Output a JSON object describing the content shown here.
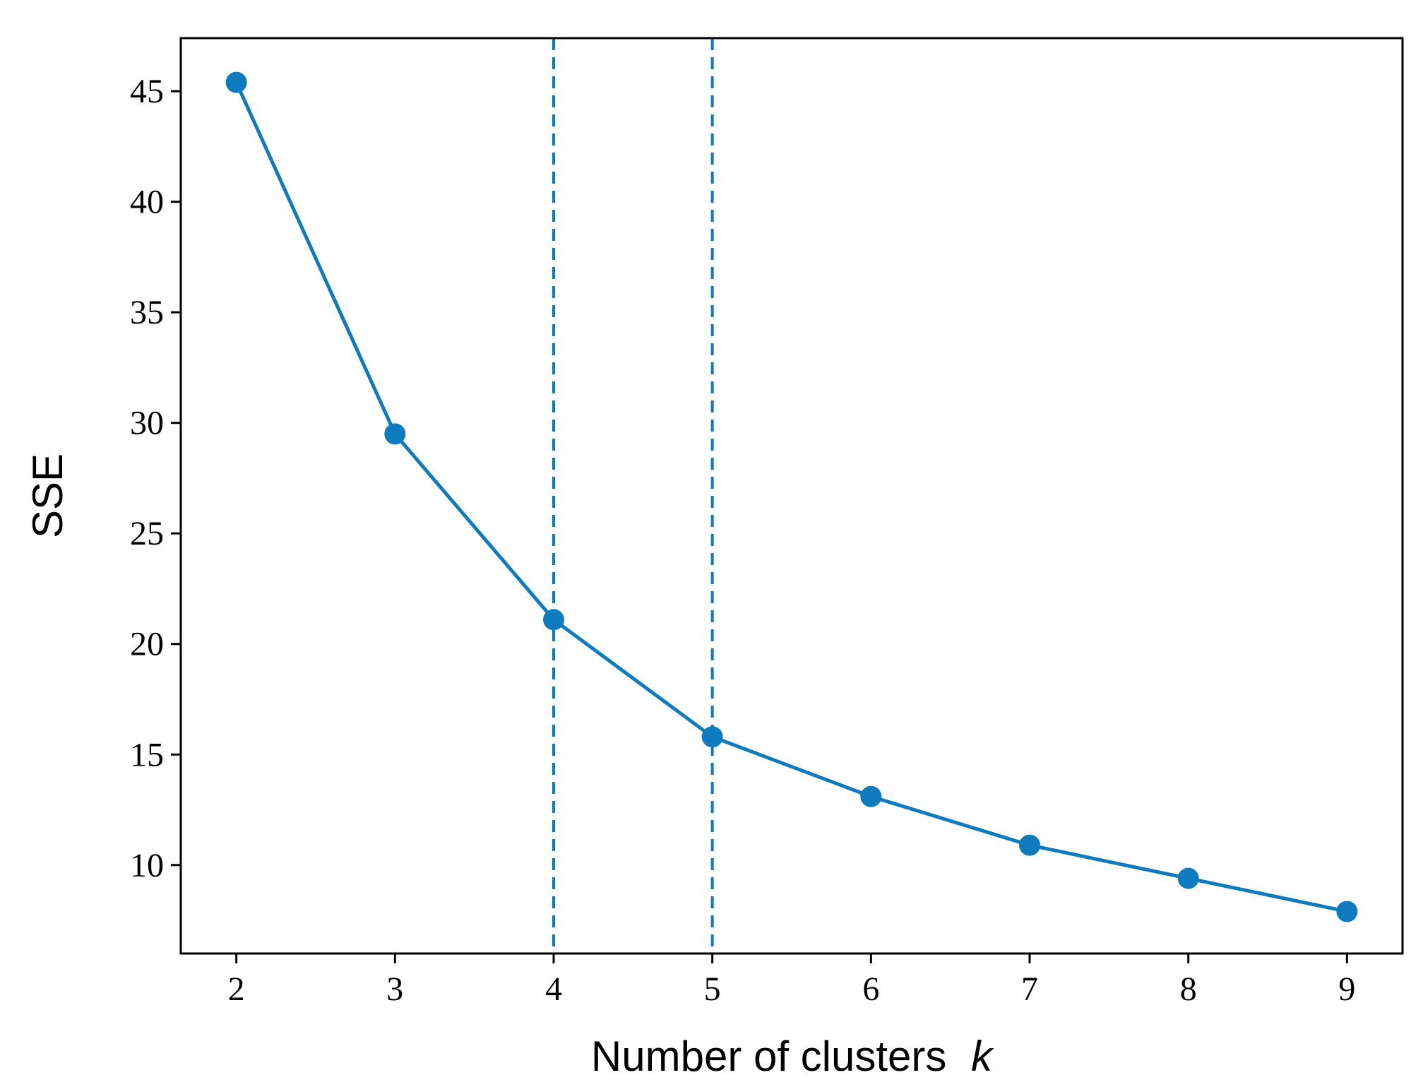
{
  "chart_data": {
    "type": "line",
    "title": "",
    "xlabel": "Number of clusters",
    "xlabel_var": "k",
    "ylabel": "SSE",
    "x": [
      2,
      3,
      4,
      5,
      6,
      7,
      8,
      9
    ],
    "series": [
      {
        "values": [
          45.4,
          29.5,
          21.1,
          15.8,
          13.1,
          10.9,
          9.4,
          7.9
        ]
      }
    ],
    "xlim": [
      1.65,
      9.35
    ],
    "ylim": [
      6.0,
      47.4
    ],
    "xticks": [
      2,
      3,
      4,
      5,
      6,
      7,
      8,
      9
    ],
    "yticks": [
      10,
      15,
      20,
      25,
      30,
      35,
      40,
      45
    ],
    "vlines": [
      4,
      5
    ],
    "grid": false,
    "legend": "none",
    "colors": {
      "line": "#0d7bbd",
      "frame": "#000000"
    }
  }
}
